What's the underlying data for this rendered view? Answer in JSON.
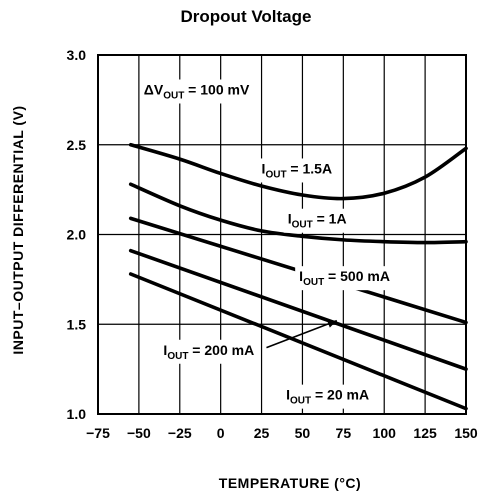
{
  "chart_data": {
    "type": "line",
    "title": "Dropout Voltage",
    "xlabel": "TEMPERATURE (°C)",
    "ylabel": "INPUT–OUTPUT DIFFERENTIAL (V)",
    "xlim": [
      -75,
      150
    ],
    "ylim": [
      1.0,
      3.0
    ],
    "x_ticks": [
      -75,
      -50,
      -25,
      0,
      25,
      50,
      75,
      100,
      125,
      150
    ],
    "x_tick_labels": [
      "−75",
      "−50",
      "−25",
      "0",
      "25",
      "50",
      "75",
      "100",
      "125",
      "150"
    ],
    "y_ticks": [
      1.0,
      1.5,
      2.0,
      2.5,
      3.0
    ],
    "y_tick_labels": [
      "1.0",
      "1.5",
      "2.0",
      "2.5",
      "3.0"
    ],
    "grid": true,
    "condition": {
      "prefix": "ΔV",
      "sub": "OUT",
      "suffix": " = 100 mV"
    },
    "series": [
      {
        "name": "IOUT = 1.5A",
        "label_main": "I",
        "label_sub": "OUT",
        "label_rest": " = 1.5A",
        "x": [
          -55,
          -25,
          0,
          25,
          50,
          75,
          100,
          125,
          150
        ],
        "y": [
          2.5,
          2.42,
          2.34,
          2.27,
          2.22,
          2.2,
          2.23,
          2.32,
          2.48
        ]
      },
      {
        "name": "IOUT = 1A",
        "label_main": "I",
        "label_sub": "OUT",
        "label_rest": " = 1A",
        "x": [
          -55,
          -25,
          0,
          25,
          50,
          75,
          100,
          125,
          150
        ],
        "y": [
          2.28,
          2.16,
          2.08,
          2.02,
          1.99,
          1.97,
          1.96,
          1.955,
          1.96
        ]
      },
      {
        "name": "IOUT = 500 mA",
        "label_main": "I",
        "label_sub": "OUT",
        "label_rest": " = 500 mA",
        "x": [
          -55,
          150
        ],
        "y": [
          2.09,
          1.51
        ]
      },
      {
        "name": "IOUT = 200 mA",
        "label_main": "I",
        "label_sub": "OUT",
        "label_rest": " = 200 mA",
        "x": [
          -55,
          150
        ],
        "y": [
          1.91,
          1.25
        ]
      },
      {
        "name": "IOUT = 20 mA",
        "label_main": "I",
        "label_sub": "OUT",
        "label_rest": " = 20 mA",
        "x": [
          -55,
          150
        ],
        "y": [
          1.78,
          1.03
        ]
      }
    ]
  }
}
